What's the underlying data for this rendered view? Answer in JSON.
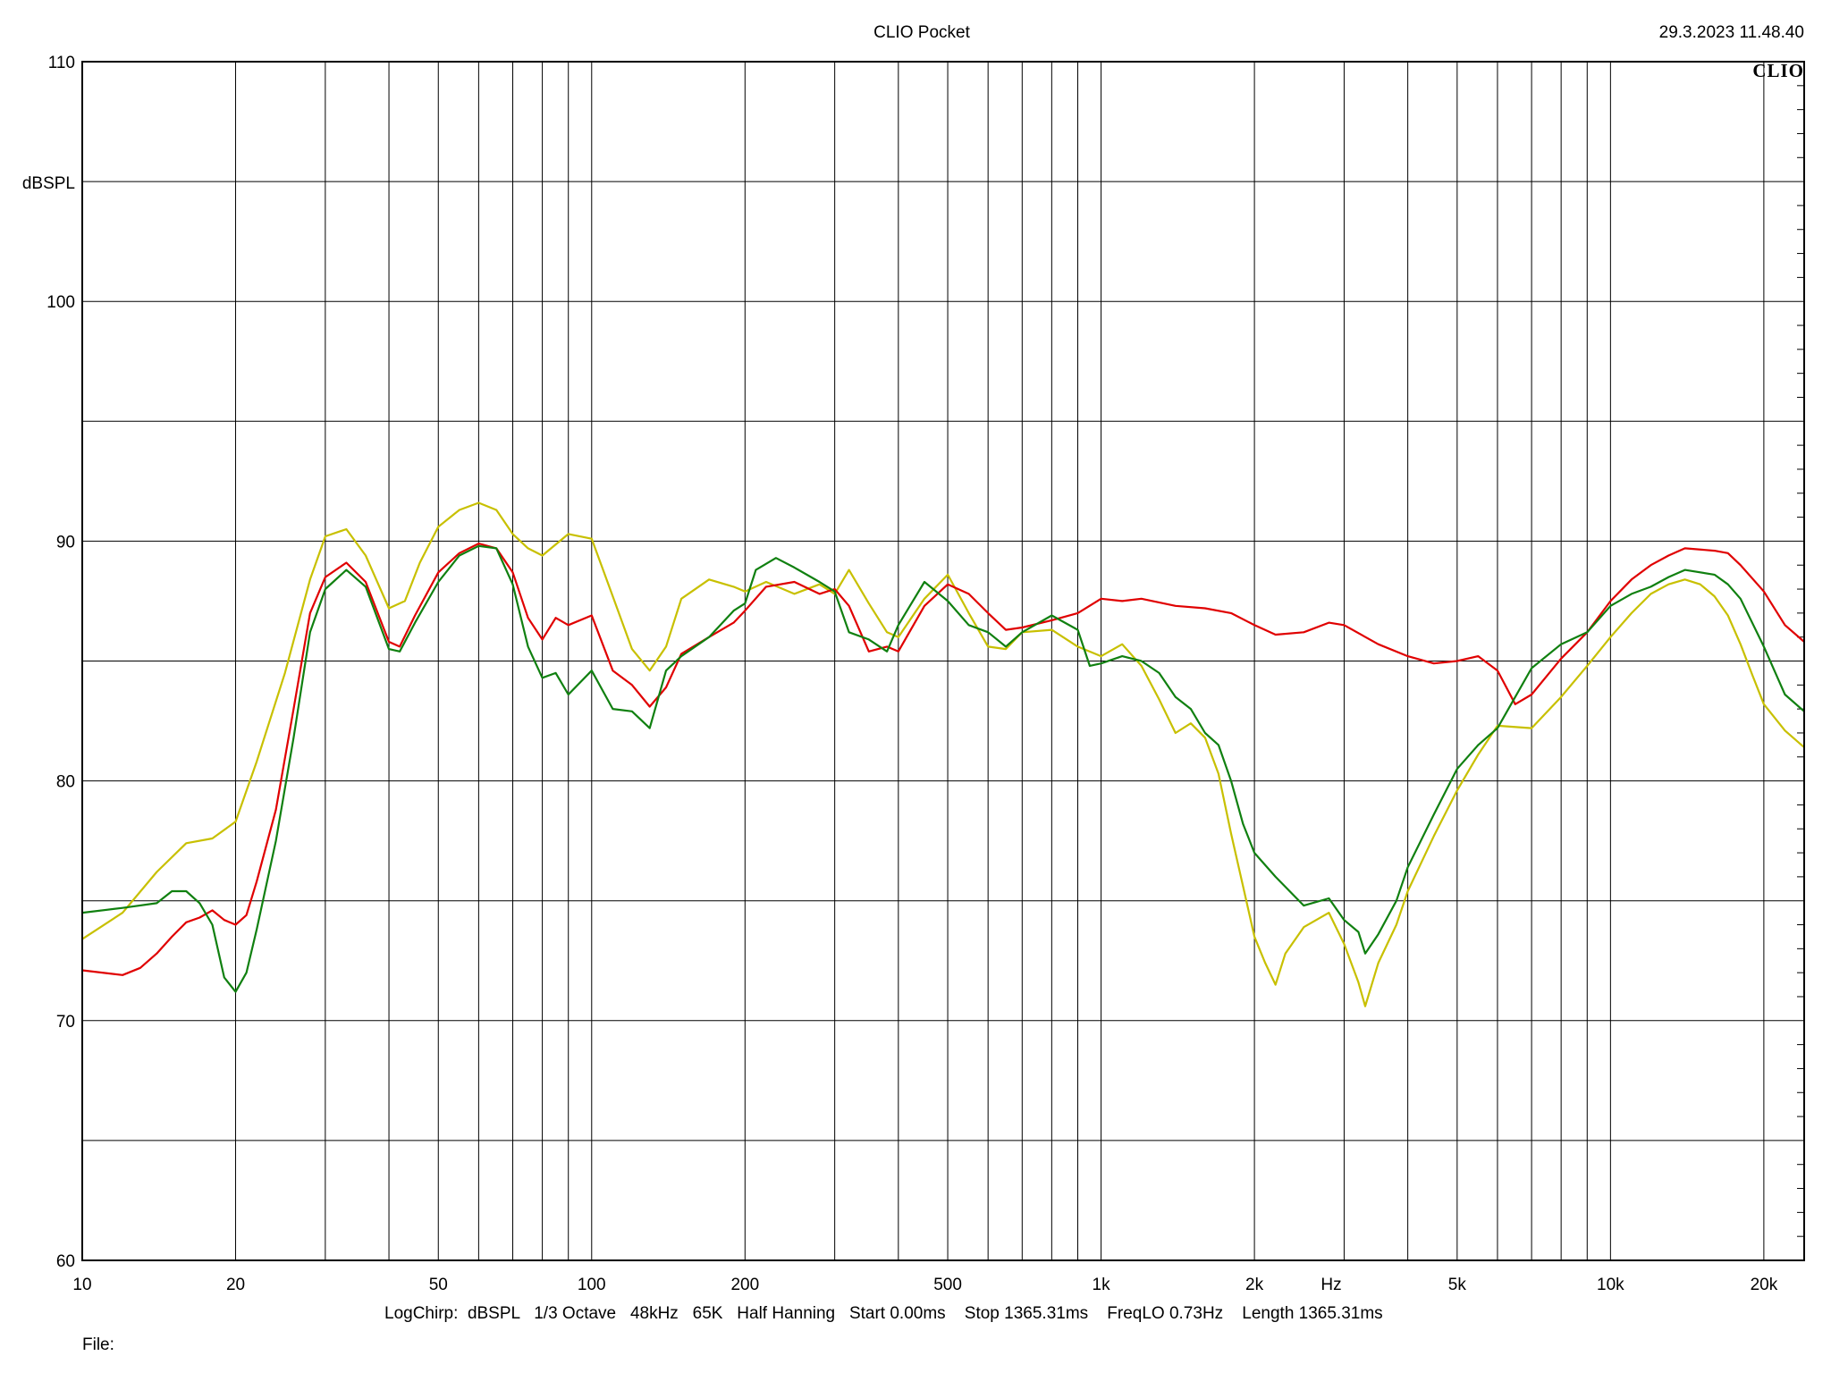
{
  "header": {
    "title": "CLIO Pocket",
    "timestamp": "29.3.2023 11.48.40",
    "brand": "CLIO"
  },
  "footer": {
    "settings": "LogChirp:  dBSPL   1/3 Octave   48kHz   65K   Half Hanning   Start 0.00ms    Stop 1365.31ms    FreqLO 0.73Hz    Length 1365.31ms",
    "file_label": "File:"
  },
  "chart_data": {
    "type": "line",
    "x_scale": "log",
    "xlim": [
      10,
      24000
    ],
    "ylim": [
      60,
      110
    ],
    "ylabel": "dBSPL",
    "xlabel": "Hz",
    "grid": true,
    "y_ticks": [
      {
        "v": 110,
        "label": "110"
      },
      {
        "v": 100,
        "label": "100"
      },
      {
        "v": 90,
        "label": "90"
      },
      {
        "v": 80,
        "label": "80"
      },
      {
        "v": 70,
        "label": "70"
      },
      {
        "v": 60,
        "label": "60"
      }
    ],
    "y_grid": [
      60,
      65,
      70,
      75,
      80,
      85,
      90,
      95,
      100,
      105,
      110
    ],
    "x_grid": [
      20,
      30,
      40,
      50,
      60,
      70,
      80,
      90,
      100,
      200,
      300,
      400,
      500,
      600,
      700,
      800,
      900,
      1000,
      2000,
      3000,
      4000,
      5000,
      6000,
      7000,
      8000,
      9000,
      10000,
      20000
    ],
    "x_ticks": [
      {
        "v": 10,
        "label": "10"
      },
      {
        "v": 20,
        "label": "20"
      },
      {
        "v": 50,
        "label": "50"
      },
      {
        "v": 100,
        "label": "100"
      },
      {
        "v": 200,
        "label": "200"
      },
      {
        "v": 500,
        "label": "500"
      },
      {
        "v": 1000,
        "label": "1k"
      },
      {
        "v": 2000,
        "label": "2k"
      },
      {
        "v": 5000,
        "label": "5k"
      },
      {
        "v": 10000,
        "label": "10k"
      },
      {
        "v": 20000,
        "label": "20k"
      }
    ],
    "series": [
      {
        "color": "#c8c000",
        "points": [
          [
            10,
            73.4
          ],
          [
            12,
            74.5
          ],
          [
            14,
            76.2
          ],
          [
            16,
            77.4
          ],
          [
            18,
            77.6
          ],
          [
            20,
            78.3
          ],
          [
            22,
            80.8
          ],
          [
            25,
            84.5
          ],
          [
            28,
            88.4
          ],
          [
            30,
            90.2
          ],
          [
            33,
            90.5
          ],
          [
            36,
            89.4
          ],
          [
            40,
            87.2
          ],
          [
            43,
            87.5
          ],
          [
            46,
            89.1
          ],
          [
            50,
            90.6
          ],
          [
            55,
            91.3
          ],
          [
            60,
            91.6
          ],
          [
            65,
            91.3
          ],
          [
            70,
            90.3
          ],
          [
            75,
            89.7
          ],
          [
            80,
            89.4
          ],
          [
            90,
            90.3
          ],
          [
            100,
            90.1
          ],
          [
            110,
            87.7
          ],
          [
            120,
            85.5
          ],
          [
            130,
            84.6
          ],
          [
            140,
            85.6
          ],
          [
            150,
            87.6
          ],
          [
            170,
            88.4
          ],
          [
            190,
            88.1
          ],
          [
            200,
            87.9
          ],
          [
            220,
            88.3
          ],
          [
            250,
            87.8
          ],
          [
            280,
            88.2
          ],
          [
            300,
            87.8
          ],
          [
            320,
            88.8
          ],
          [
            350,
            87.4
          ],
          [
            380,
            86.2
          ],
          [
            400,
            86.0
          ],
          [
            450,
            87.6
          ],
          [
            500,
            88.6
          ],
          [
            550,
            87.0
          ],
          [
            600,
            85.6
          ],
          [
            650,
            85.5
          ],
          [
            700,
            86.2
          ],
          [
            800,
            86.3
          ],
          [
            900,
            85.6
          ],
          [
            1000,
            85.2
          ],
          [
            1100,
            85.7
          ],
          [
            1200,
            84.8
          ],
          [
            1300,
            83.4
          ],
          [
            1400,
            82.0
          ],
          [
            1500,
            82.4
          ],
          [
            1600,
            81.8
          ],
          [
            1700,
            80.3
          ],
          [
            1800,
            77.8
          ],
          [
            1900,
            75.6
          ],
          [
            2000,
            73.5
          ],
          [
            2100,
            72.4
          ],
          [
            2200,
            71.5
          ],
          [
            2300,
            72.8
          ],
          [
            2500,
            73.9
          ],
          [
            2800,
            74.5
          ],
          [
            3000,
            73.2
          ],
          [
            3200,
            71.6
          ],
          [
            3300,
            70.6
          ],
          [
            3500,
            72.4
          ],
          [
            3800,
            74.0
          ],
          [
            4000,
            75.4
          ],
          [
            4500,
            77.7
          ],
          [
            5000,
            79.6
          ],
          [
            5500,
            81.1
          ],
          [
            6000,
            82.3
          ],
          [
            7000,
            82.2
          ],
          [
            8000,
            83.5
          ],
          [
            9000,
            84.8
          ],
          [
            10000,
            86.0
          ],
          [
            11000,
            87.0
          ],
          [
            12000,
            87.8
          ],
          [
            13000,
            88.2
          ],
          [
            14000,
            88.4
          ],
          [
            15000,
            88.2
          ],
          [
            16000,
            87.7
          ],
          [
            17000,
            86.9
          ],
          [
            18000,
            85.7
          ],
          [
            19000,
            84.4
          ],
          [
            20000,
            83.2
          ],
          [
            22000,
            82.1
          ],
          [
            24000,
            81.4
          ]
        ]
      },
      {
        "color": "#e00000",
        "points": [
          [
            10,
            72.1
          ],
          [
            12,
            71.9
          ],
          [
            13,
            72.2
          ],
          [
            14,
            72.8
          ],
          [
            15,
            73.5
          ],
          [
            16,
            74.1
          ],
          [
            17,
            74.3
          ],
          [
            18,
            74.6
          ],
          [
            19,
            74.2
          ],
          [
            20,
            74.0
          ],
          [
            21,
            74.4
          ],
          [
            22,
            75.8
          ],
          [
            24,
            78.8
          ],
          [
            26,
            83.0
          ],
          [
            28,
            87.0
          ],
          [
            30,
            88.5
          ],
          [
            33,
            89.1
          ],
          [
            36,
            88.3
          ],
          [
            40,
            85.8
          ],
          [
            42,
            85.6
          ],
          [
            45,
            86.9
          ],
          [
            50,
            88.7
          ],
          [
            55,
            89.5
          ],
          [
            60,
            89.9
          ],
          [
            65,
            89.7
          ],
          [
            70,
            88.7
          ],
          [
            75,
            86.8
          ],
          [
            80,
            85.9
          ],
          [
            85,
            86.8
          ],
          [
            90,
            86.5
          ],
          [
            100,
            86.9
          ],
          [
            110,
            84.6
          ],
          [
            120,
            84.0
          ],
          [
            130,
            83.1
          ],
          [
            140,
            83.9
          ],
          [
            150,
            85.3
          ],
          [
            170,
            86.0
          ],
          [
            190,
            86.6
          ],
          [
            200,
            87.1
          ],
          [
            220,
            88.1
          ],
          [
            250,
            88.3
          ],
          [
            280,
            87.8
          ],
          [
            300,
            88.0
          ],
          [
            320,
            87.3
          ],
          [
            350,
            85.4
          ],
          [
            380,
            85.6
          ],
          [
            400,
            85.4
          ],
          [
            450,
            87.3
          ],
          [
            500,
            88.2
          ],
          [
            550,
            87.8
          ],
          [
            600,
            87.0
          ],
          [
            650,
            86.3
          ],
          [
            700,
            86.4
          ],
          [
            800,
            86.7
          ],
          [
            900,
            87.0
          ],
          [
            1000,
            87.6
          ],
          [
            1100,
            87.5
          ],
          [
            1200,
            87.6
          ],
          [
            1400,
            87.3
          ],
          [
            1600,
            87.2
          ],
          [
            1800,
            87.0
          ],
          [
            2000,
            86.5
          ],
          [
            2200,
            86.1
          ],
          [
            2500,
            86.2
          ],
          [
            2800,
            86.6
          ],
          [
            3000,
            86.5
          ],
          [
            3500,
            85.7
          ],
          [
            4000,
            85.2
          ],
          [
            4500,
            84.9
          ],
          [
            5000,
            85.0
          ],
          [
            5500,
            85.2
          ],
          [
            6000,
            84.6
          ],
          [
            6500,
            83.2
          ],
          [
            7000,
            83.6
          ],
          [
            8000,
            85.1
          ],
          [
            9000,
            86.2
          ],
          [
            10000,
            87.5
          ],
          [
            11000,
            88.4
          ],
          [
            12000,
            89.0
          ],
          [
            13000,
            89.4
          ],
          [
            14000,
            89.7
          ],
          [
            16000,
            89.6
          ],
          [
            17000,
            89.5
          ],
          [
            18000,
            89.0
          ],
          [
            20000,
            87.9
          ],
          [
            22000,
            86.5
          ],
          [
            24000,
            85.8
          ]
        ]
      },
      {
        "color": "#108010",
        "points": [
          [
            10,
            74.5
          ],
          [
            12,
            74.7
          ],
          [
            14,
            74.9
          ],
          [
            15,
            75.4
          ],
          [
            16,
            75.4
          ],
          [
            17,
            74.9
          ],
          [
            18,
            74.0
          ],
          [
            19,
            71.8
          ],
          [
            20,
            71.2
          ],
          [
            21,
            72.0
          ],
          [
            22,
            73.8
          ],
          [
            24,
            77.5
          ],
          [
            26,
            81.8
          ],
          [
            28,
            86.2
          ],
          [
            30,
            88.0
          ],
          [
            33,
            88.8
          ],
          [
            36,
            88.1
          ],
          [
            40,
            85.5
          ],
          [
            42,
            85.4
          ],
          [
            45,
            86.6
          ],
          [
            50,
            88.3
          ],
          [
            55,
            89.4
          ],
          [
            60,
            89.8
          ],
          [
            65,
            89.7
          ],
          [
            70,
            88.2
          ],
          [
            75,
            85.6
          ],
          [
            80,
            84.3
          ],
          [
            85,
            84.5
          ],
          [
            90,
            83.6
          ],
          [
            100,
            84.6
          ],
          [
            110,
            83.0
          ],
          [
            120,
            82.9
          ],
          [
            130,
            82.2
          ],
          [
            140,
            84.6
          ],
          [
            150,
            85.2
          ],
          [
            170,
            86.0
          ],
          [
            190,
            87.1
          ],
          [
            200,
            87.4
          ],
          [
            210,
            88.8
          ],
          [
            230,
            89.3
          ],
          [
            250,
            88.9
          ],
          [
            280,
            88.3
          ],
          [
            300,
            87.9
          ],
          [
            320,
            86.2
          ],
          [
            350,
            85.9
          ],
          [
            380,
            85.4
          ],
          [
            400,
            86.5
          ],
          [
            450,
            88.3
          ],
          [
            500,
            87.5
          ],
          [
            550,
            86.5
          ],
          [
            600,
            86.2
          ],
          [
            650,
            85.6
          ],
          [
            700,
            86.2
          ],
          [
            800,
            86.9
          ],
          [
            900,
            86.3
          ],
          [
            950,
            84.8
          ],
          [
            1000,
            84.9
          ],
          [
            1100,
            85.2
          ],
          [
            1200,
            85.0
          ],
          [
            1300,
            84.5
          ],
          [
            1400,
            83.5
          ],
          [
            1500,
            83.0
          ],
          [
            1600,
            82.0
          ],
          [
            1700,
            81.5
          ],
          [
            1800,
            80.0
          ],
          [
            1900,
            78.2
          ],
          [
            2000,
            77.0
          ],
          [
            2200,
            76.0
          ],
          [
            2500,
            74.8
          ],
          [
            2800,
            75.1
          ],
          [
            3000,
            74.2
          ],
          [
            3200,
            73.7
          ],
          [
            3300,
            72.8
          ],
          [
            3500,
            73.6
          ],
          [
            3800,
            75.0
          ],
          [
            4000,
            76.4
          ],
          [
            4500,
            78.6
          ],
          [
            5000,
            80.5
          ],
          [
            5500,
            81.5
          ],
          [
            6000,
            82.2
          ],
          [
            7000,
            84.7
          ],
          [
            8000,
            85.7
          ],
          [
            9000,
            86.2
          ],
          [
            10000,
            87.3
          ],
          [
            11000,
            87.8
          ],
          [
            12000,
            88.1
          ],
          [
            13000,
            88.5
          ],
          [
            14000,
            88.8
          ],
          [
            16000,
            88.6
          ],
          [
            17000,
            88.2
          ],
          [
            18000,
            87.6
          ],
          [
            20000,
            85.6
          ],
          [
            22000,
            83.6
          ],
          [
            24000,
            82.9
          ]
        ]
      }
    ]
  }
}
